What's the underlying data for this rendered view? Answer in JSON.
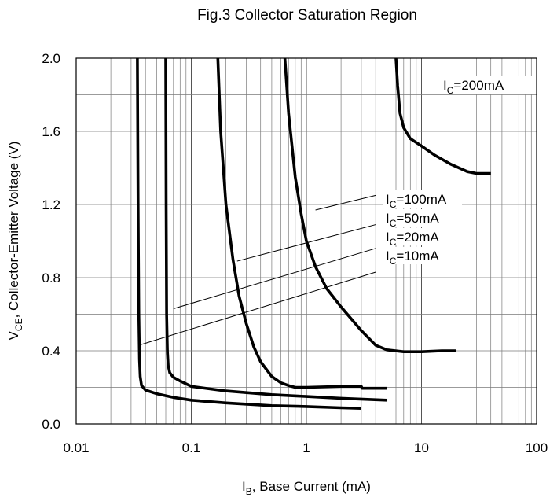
{
  "chart_data": {
    "type": "line",
    "title": "Fig.3 Collector Saturation Region",
    "xlabel": {
      "main": "I",
      "sub": "B",
      "rest": ", Base Current (mA)"
    },
    "ylabel": {
      "main": "V",
      "sub": "CE",
      "rest": ", Collector-Emitter Voltage (V)"
    },
    "xscale": "log",
    "xlim": [
      0.01,
      100
    ],
    "ylim": [
      0.0,
      2.0
    ],
    "x_ticks": [
      {
        "v": 0.01,
        "label": "0.01"
      },
      {
        "v": 0.1,
        "label": "0.1"
      },
      {
        "v": 1,
        "label": "1"
      },
      {
        "v": 10,
        "label": "10"
      },
      {
        "v": 100,
        "label": "100"
      }
    ],
    "y_ticks": [
      {
        "v": 0.0,
        "label": "0.0"
      },
      {
        "v": 0.4,
        "label": "0.4"
      },
      {
        "v": 0.8,
        "label": "0.8"
      },
      {
        "v": 1.2,
        "label": "1.2"
      },
      {
        "v": 1.6,
        "label": "1.6"
      },
      {
        "v": 2.0,
        "label": "2.0"
      }
    ],
    "grid": true,
    "series": [
      {
        "name": "IC=10mA",
        "label": {
          "main": "I",
          "sub": "C",
          "rest": "=10mA"
        },
        "x": [
          0.034,
          0.0345,
          0.035,
          0.0355,
          0.036,
          0.037,
          0.04,
          0.05,
          0.07,
          0.1,
          0.2,
          0.5,
          1,
          2,
          3
        ],
        "y": [
          2.0,
          1.2,
          0.6,
          0.35,
          0.26,
          0.21,
          0.185,
          0.165,
          0.145,
          0.13,
          0.115,
          0.1,
          0.095,
          0.088,
          0.085
        ]
      },
      {
        "name": "IC=20mA",
        "label": {
          "main": "I",
          "sub": "C",
          "rest": "=20mA"
        },
        "x": [
          0.06,
          0.0605,
          0.061,
          0.062,
          0.063,
          0.065,
          0.07,
          0.08,
          0.1,
          0.2,
          0.5,
          1,
          2,
          5
        ],
        "y": [
          2.0,
          1.2,
          0.6,
          0.4,
          0.32,
          0.28,
          0.255,
          0.235,
          0.205,
          0.18,
          0.16,
          0.15,
          0.14,
          0.13
        ]
      },
      {
        "name": "IC=50mA",
        "label": {
          "main": "I",
          "sub": "C",
          "rest": "=50mA"
        },
        "x": [
          0.17,
          0.18,
          0.2,
          0.23,
          0.26,
          0.3,
          0.35,
          0.4,
          0.5,
          0.6,
          0.7,
          0.8,
          1,
          2,
          3,
          3.05,
          5
        ],
        "y": [
          2.0,
          1.6,
          1.2,
          0.9,
          0.7,
          0.55,
          0.42,
          0.34,
          0.26,
          0.225,
          0.21,
          0.2,
          0.2,
          0.205,
          0.205,
          0.195,
          0.195
        ]
      },
      {
        "name": "IC=100mA",
        "label": {
          "main": "I",
          "sub": "C",
          "rest": "=100mA"
        },
        "x": [
          0.65,
          0.7,
          0.8,
          0.9,
          1,
          1.2,
          1.5,
          2,
          3,
          4,
          5,
          7,
          10,
          15,
          20
        ],
        "y": [
          2.0,
          1.7,
          1.35,
          1.15,
          1.0,
          0.86,
          0.74,
          0.64,
          0.51,
          0.43,
          0.405,
          0.395,
          0.395,
          0.4,
          0.4
        ]
      },
      {
        "name": "IC=200mA",
        "label": {
          "main": "I",
          "sub": "C",
          "rest": "=200mA"
        },
        "x": [
          6,
          6.2,
          6.5,
          7,
          8,
          10,
          13,
          18,
          25,
          30,
          35,
          40
        ],
        "y": [
          2.0,
          1.85,
          1.7,
          1.62,
          1.56,
          1.52,
          1.47,
          1.42,
          1.38,
          1.37,
          1.37,
          1.37
        ]
      }
    ],
    "annotation_lines": [
      {
        "series": "IC=100mA",
        "x": [
          1.2,
          4.0
        ],
        "y": [
          1.17,
          1.25
        ]
      },
      {
        "series": "IC=50mA",
        "x": [
          0.25,
          4.0
        ],
        "y": [
          0.89,
          1.09
        ]
      },
      {
        "series": "IC=20mA",
        "x": [
          0.07,
          4.0
        ],
        "y": [
          0.63,
          0.96
        ]
      },
      {
        "series": "IC=10mA",
        "x": [
          0.035,
          4.0
        ],
        "y": [
          0.43,
          0.83
        ]
      }
    ]
  }
}
